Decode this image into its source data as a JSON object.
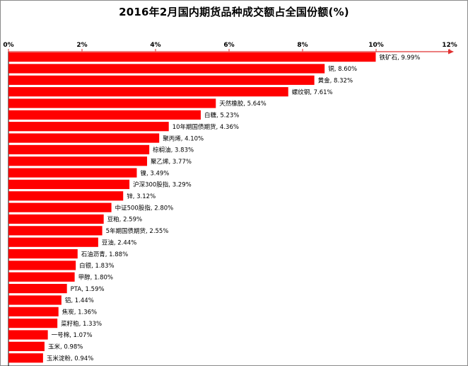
{
  "chart_data": {
    "type": "bar",
    "orientation": "horizontal",
    "title": "2016年2月国内期货品种成交额占全国份额(%)",
    "xlabel": "",
    "ylabel": "",
    "xlim": [
      0,
      12
    ],
    "x_ticks": [
      "0%",
      "2%",
      "4%",
      "6%",
      "8%",
      "10%",
      "12%"
    ],
    "x_axis_position": "top",
    "grid": false,
    "legend": "none",
    "bar_color": "#ff0000",
    "axis_color": "#e03030",
    "categories": [
      "铁矿石",
      "铜",
      "黄金",
      "螺纹钢",
      "天然橡胶",
      "白糖",
      "10年期国债期货",
      "聚丙烯",
      "棕榈油",
      "聚乙烯",
      "镍",
      "沪深300股指",
      "锌",
      "中证500股指",
      "豆粕",
      "5年期国债期货",
      "豆油",
      "石油沥青",
      "白银",
      "甲醇",
      "PTA",
      "铝",
      "焦炭",
      "菜籽粕",
      "一号棉",
      "玉米",
      "玉米淀粉"
    ],
    "values": [
      9.99,
      8.6,
      8.32,
      7.61,
      5.64,
      5.23,
      4.36,
      4.1,
      3.83,
      3.77,
      3.49,
      3.29,
      3.12,
      2.8,
      2.59,
      2.55,
      2.44,
      1.88,
      1.83,
      1.8,
      1.59,
      1.44,
      1.36,
      1.33,
      1.07,
      0.98,
      0.94
    ],
    "data_labels": [
      "铁矿石, 9.99%",
      "铜, 8.60%",
      "黄金, 8.32%",
      "螺纹钢, 7.61%",
      "天然橡胶, 5.64%",
      "白糖, 5.23%",
      "10年期国债期货, 4.36%",
      "聚丙烯, 4.10%",
      "棕榈油, 3.83%",
      "聚乙烯, 3.77%",
      "镍, 3.49%",
      "沪深300股指, 3.29%",
      "锌, 3.12%",
      "中证500股指, 2.80%",
      "豆粕, 2.59%",
      "5年期国债期货, 2.55%",
      "豆油, 2.44%",
      "石油沥青, 1.88%",
      "白银, 1.83%",
      "甲醇, 1.80%",
      "PTA, 1.59%",
      "铝, 1.44%",
      "焦炭, 1.36%",
      "菜籽粕, 1.33%",
      "一号棉, 1.07%",
      "玉米, 0.98%",
      "玉米淀粉, 0.94%"
    ]
  }
}
